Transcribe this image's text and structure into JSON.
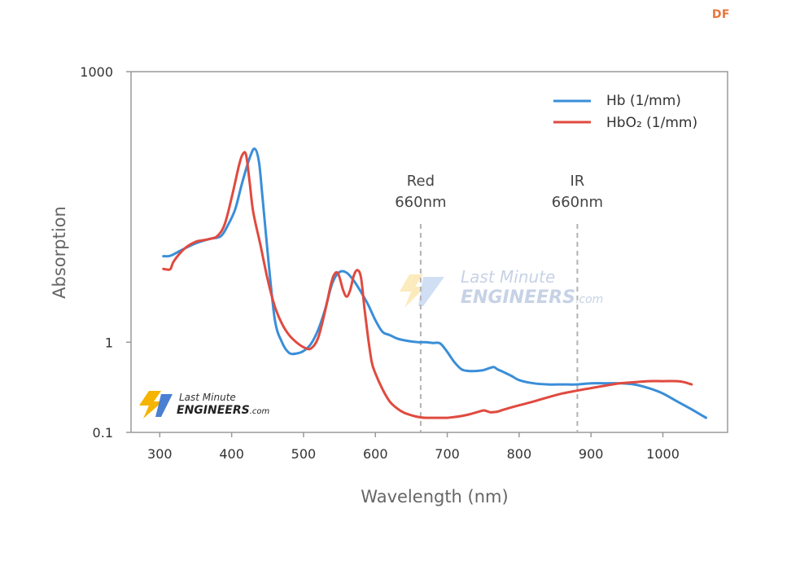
{
  "badge": "DF",
  "chart_data": {
    "type": "line",
    "title": "",
    "xlabel": "Wavelength (nm)",
    "ylabel": "Absorption",
    "xlim": [
      260,
      1090
    ],
    "ylim": [
      0.1,
      1000
    ],
    "yscale": "log",
    "x_ticks": [
      300,
      400,
      500,
      600,
      700,
      800,
      900,
      1000
    ],
    "y_ticks": [
      {
        "value": 0.1,
        "label": "0.1"
      },
      {
        "value": 1,
        "label": "1"
      },
      {
        "value": 1000,
        "label": "1000"
      }
    ],
    "legend_position": "top-right",
    "series": [
      {
        "name": "Hb (1/mm)",
        "color": "#3a8ed8",
        "x": [
          305,
          315,
          330,
          350,
          370,
          385,
          395,
          405,
          415,
          425,
          432,
          438,
          443,
          450,
          460,
          470,
          480,
          490,
          500,
          510,
          520,
          530,
          540,
          550,
          560,
          570,
          580,
          590,
          600,
          610,
          620,
          630,
          640,
          650,
          660,
          670,
          680,
          690,
          700,
          710,
          720,
          730,
          740,
          750,
          760,
          765,
          770,
          780,
          790,
          800,
          820,
          840,
          860,
          880,
          900,
          920,
          940,
          960,
          980,
          1000,
          1020,
          1040,
          1060
        ],
        "y": [
          9.0,
          9.1,
          10.5,
          12.5,
          14.0,
          15.0,
          20.0,
          30.0,
          60.0,
          110.0,
          140.0,
          100.0,
          40.0,
          10.0,
          1.8,
          1.0,
          0.76,
          0.75,
          0.8,
          0.95,
          1.35,
          2.3,
          4.5,
          6.0,
          5.9,
          4.8,
          3.6,
          2.6,
          1.75,
          1.3,
          1.2,
          1.1,
          1.05,
          1.02,
          1.0,
          1.0,
          0.98,
          0.97,
          0.78,
          0.6,
          0.5,
          0.48,
          0.48,
          0.49,
          0.52,
          0.53,
          0.5,
          0.46,
          0.42,
          0.38,
          0.35,
          0.34,
          0.34,
          0.34,
          0.35,
          0.35,
          0.35,
          0.34,
          0.31,
          0.27,
          0.22,
          0.18,
          0.145
        ]
      },
      {
        "name": "HbO₂ (1/mm)",
        "color": "#e04a3f",
        "x": [
          305,
          310,
          315,
          320,
          335,
          350,
          360,
          370,
          380,
          390,
          400,
          410,
          415,
          420,
          425,
          430,
          440,
          450,
          460,
          470,
          480,
          490,
          500,
          510,
          520,
          530,
          537,
          542,
          548,
          555,
          560,
          565,
          570,
          575,
          580,
          585,
          590,
          595,
          600,
          610,
          620,
          630,
          640,
          650,
          660,
          670,
          680,
          690,
          700,
          710,
          720,
          730,
          740,
          750,
          755,
          760,
          765,
          770,
          780,
          800,
          820,
          840,
          860,
          880,
          900,
          920,
          940,
          960,
          980,
          1000,
          1020,
          1030,
          1040
        ],
        "y": [
          6.5,
          6.4,
          6.5,
          8.0,
          11.0,
          13.0,
          13.5,
          14.0,
          15.0,
          20.0,
          40.0,
          90.0,
          120.0,
          120.0,
          60.0,
          28.0,
          12.0,
          5.0,
          2.5,
          1.6,
          1.2,
          1.0,
          0.88,
          0.85,
          1.1,
          2.2,
          4.0,
          5.5,
          5.8,
          3.8,
          3.2,
          3.8,
          5.5,
          6.3,
          5.2,
          2.3,
          1.1,
          0.6,
          0.45,
          0.3,
          0.22,
          0.185,
          0.165,
          0.155,
          0.148,
          0.145,
          0.145,
          0.145,
          0.145,
          0.148,
          0.152,
          0.158,
          0.166,
          0.175,
          0.172,
          0.167,
          0.168,
          0.17,
          0.18,
          0.2,
          0.22,
          0.245,
          0.27,
          0.29,
          0.31,
          0.33,
          0.35,
          0.36,
          0.37,
          0.37,
          0.37,
          0.36,
          0.34
        ]
      }
    ],
    "annotations": [
      {
        "x": 663,
        "line1": "Red",
        "line2": "660nm"
      },
      {
        "x": 881,
        "line1": "IR",
        "line2": "660nm"
      }
    ]
  },
  "watermark": {
    "line1": "Last Minute",
    "line2": "ENGINEERS",
    "suffix": ".com"
  },
  "logo": {
    "line1": "Last Minute",
    "line2": "ENGINEERS",
    "suffix": ".com"
  }
}
